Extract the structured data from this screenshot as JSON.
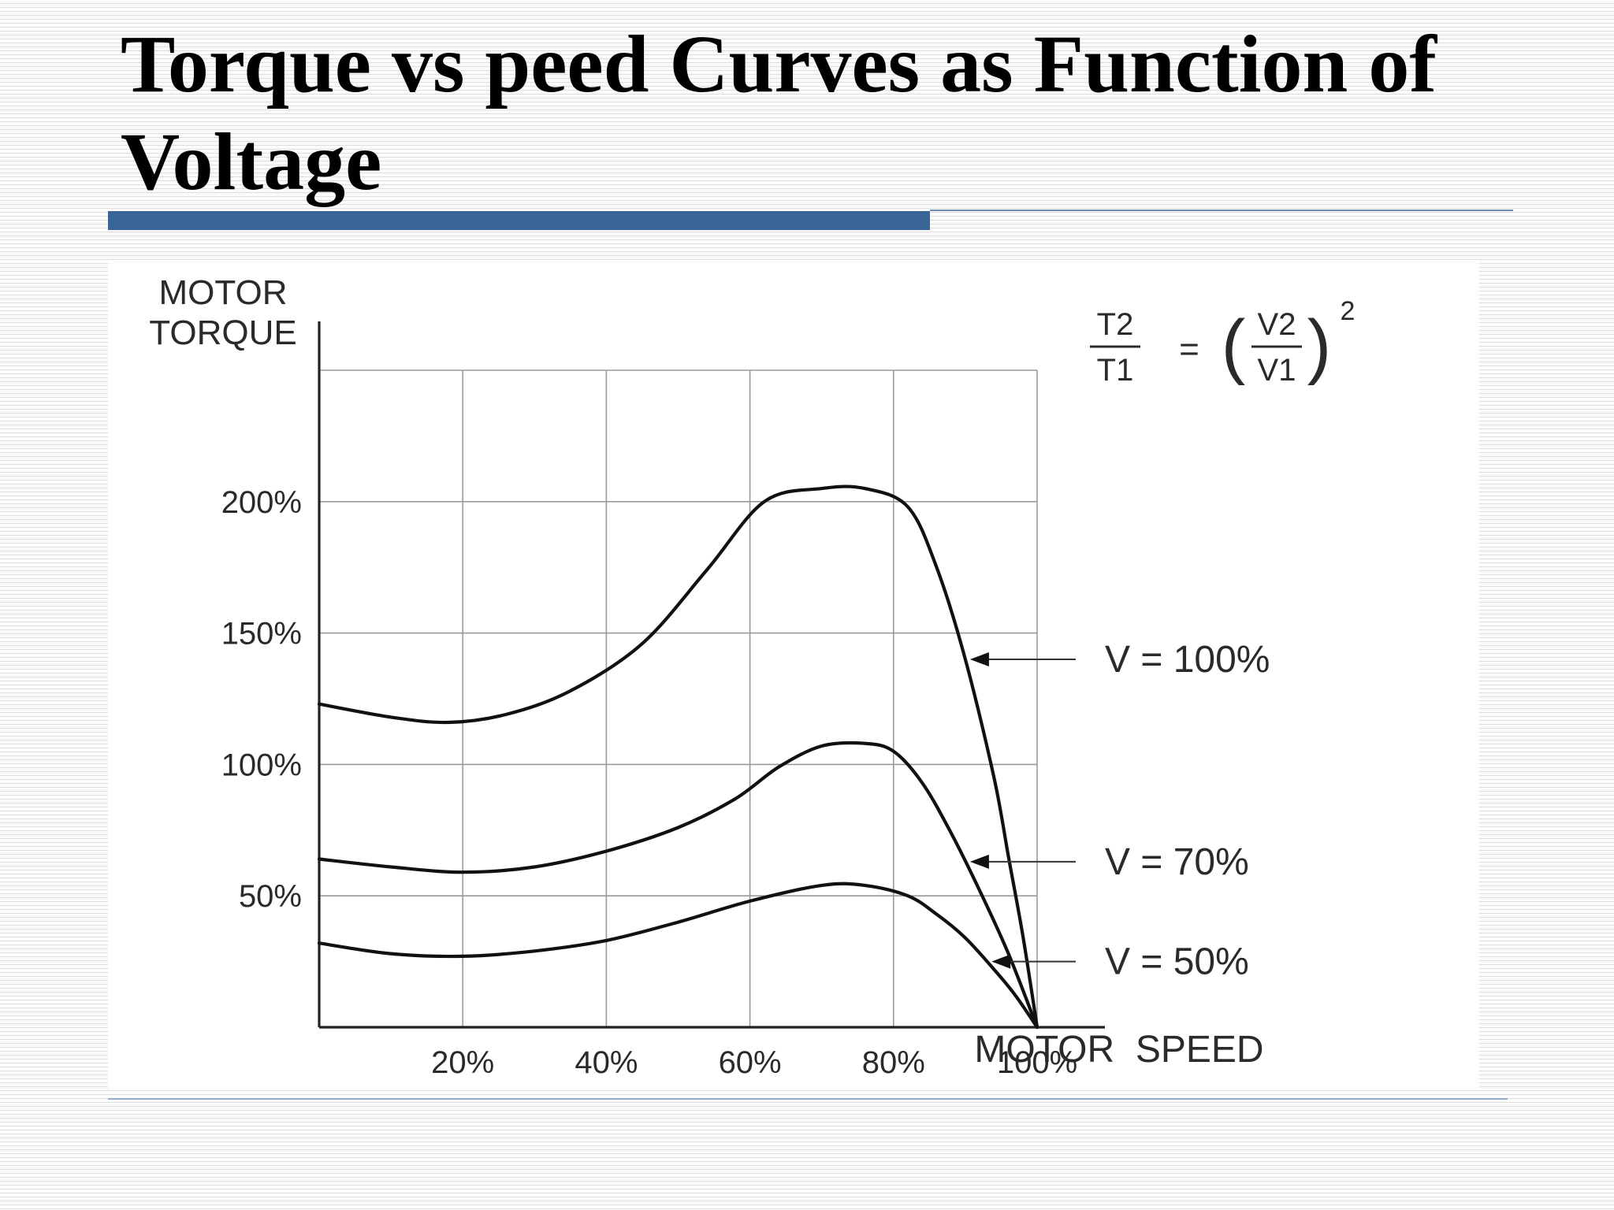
{
  "slide": {
    "title": "Torque vs peed Curves as Function of Voltage"
  },
  "colors": {
    "accent": "#3a6598",
    "curve": "#111111",
    "grid": "#9a9a9a"
  },
  "chart_data": {
    "type": "line",
    "title": "",
    "xlabel": "MOTOR  SPEED",
    "ylabel_lines": [
      "MOTOR",
      "TORQUE"
    ],
    "x_unit": "%",
    "y_unit": "%",
    "xlim": [
      0,
      100
    ],
    "ylim": [
      0,
      250
    ],
    "x_ticks": [
      20,
      40,
      60,
      80,
      100
    ],
    "x_tick_labels": [
      "20%",
      "40%",
      "60%",
      "80%",
      "100%"
    ],
    "y_ticks": [
      50,
      100,
      150,
      200
    ],
    "y_tick_labels": [
      "50%",
      "100%",
      "150%",
      "200%"
    ],
    "grid": true,
    "formula": {
      "lhs_num": "T2",
      "lhs_den": "T1",
      "eq": "=",
      "rhs_num": "V2",
      "rhs_den": "V1",
      "exponent": "2"
    },
    "series": [
      {
        "name": "V  =  100%",
        "x": [
          0,
          10,
          18,
          26,
          35,
          45,
          54,
          62,
          70,
          76,
          82,
          86,
          90,
          94,
          96,
          98,
          100
        ],
        "y": [
          123,
          118,
          116,
          119,
          128,
          146,
          174,
          200,
          205,
          205,
          198,
          175,
          140,
          95,
          65,
          35,
          0
        ]
      },
      {
        "name": "V  =  70%",
        "x": [
          0,
          10,
          20,
          30,
          40,
          50,
          58,
          64,
          70,
          76,
          80,
          84,
          88,
          92,
          96,
          100
        ],
        "y": [
          64,
          61,
          59,
          61,
          67,
          76,
          87,
          99,
          107,
          108,
          105,
          93,
          74,
          52,
          28,
          0
        ]
      },
      {
        "name": "V  =  50%",
        "x": [
          0,
          10,
          20,
          30,
          40,
          50,
          60,
          70,
          76,
          82,
          86,
          90,
          94,
          97,
          100
        ],
        "y": [
          32,
          28,
          27,
          29,
          33,
          40,
          48,
          54,
          54,
          50,
          43,
          34,
          22,
          12,
          0
        ]
      }
    ],
    "annotations": [
      {
        "series": 0,
        "x": 90,
        "label": "V  =  100%"
      },
      {
        "series": 1,
        "x": 90,
        "label": "V  =  70%"
      },
      {
        "series": 2,
        "x": 93,
        "label": "V  =  50%"
      }
    ]
  }
}
